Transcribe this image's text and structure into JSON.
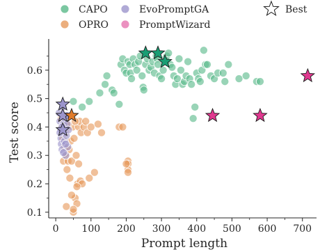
{
  "chart_data": {
    "type": "scatter",
    "xlabel": "Prompt length",
    "ylabel": "Test score",
    "xlim": [
      -20,
      740
    ],
    "ylim": [
      0.08,
      0.7
    ],
    "xticks": [
      0,
      100,
      200,
      300,
      400,
      500,
      600,
      700
    ],
    "yticks": [
      0.1,
      0.2,
      0.3,
      0.4,
      0.5,
      0.6
    ],
    "grid": false,
    "legend": {
      "placement": "top",
      "entries": [
        {
          "label": "CAPO",
          "marker": "circle",
          "color": "#5ab98a"
        },
        {
          "label": "OPRO",
          "marker": "circle",
          "color": "#e69a5c"
        },
        {
          "label": "EvoPromptGA",
          "marker": "circle",
          "color": "#9c95cc"
        },
        {
          "label": "PromptWizard",
          "marker": "circle",
          "color": "#e676b0"
        },
        {
          "label": "Best",
          "marker": "star",
          "color": "#ffffff"
        }
      ]
    },
    "series": [
      {
        "name": "CAPO",
        "color": "#5ab98a",
        "points": [
          [
            50,
            0.49
          ],
          [
            75,
            0.47
          ],
          [
            95,
            0.49
          ],
          [
            125,
            0.52
          ],
          [
            140,
            0.55
          ],
          [
            145,
            0.58
          ],
          [
            160,
            0.53
          ],
          [
            165,
            0.52
          ],
          [
            180,
            0.48
          ],
          [
            185,
            0.62
          ],
          [
            190,
            0.64
          ],
          [
            195,
            0.6
          ],
          [
            200,
            0.59
          ],
          [
            205,
            0.63
          ],
          [
            210,
            0.62
          ],
          [
            212,
            0.59
          ],
          [
            215,
            0.57
          ],
          [
            220,
            0.64
          ],
          [
            225,
            0.62
          ],
          [
            230,
            0.6
          ],
          [
            235,
            0.63
          ],
          [
            240,
            0.65
          ],
          [
            245,
            0.58
          ],
          [
            248,
            0.54
          ],
          [
            250,
            0.53
          ],
          [
            255,
            0.62
          ],
          [
            260,
            0.64
          ],
          [
            265,
            0.6
          ],
          [
            270,
            0.61
          ],
          [
            275,
            0.63
          ],
          [
            280,
            0.59
          ],
          [
            285,
            0.65
          ],
          [
            288,
            0.64
          ],
          [
            290,
            0.62
          ],
          [
            295,
            0.58
          ],
          [
            300,
            0.57
          ],
          [
            305,
            0.6
          ],
          [
            310,
            0.64
          ],
          [
            315,
            0.65
          ],
          [
            320,
            0.66
          ],
          [
            325,
            0.62
          ],
          [
            330,
            0.61
          ],
          [
            335,
            0.58
          ],
          [
            340,
            0.55
          ],
          [
            345,
            0.57
          ],
          [
            350,
            0.64
          ],
          [
            355,
            0.6
          ],
          [
            360,
            0.55
          ],
          [
            365,
            0.56
          ],
          [
            370,
            0.58
          ],
          [
            375,
            0.63
          ],
          [
            380,
            0.57
          ],
          [
            385,
            0.55
          ],
          [
            390,
            0.43
          ],
          [
            395,
            0.47
          ],
          [
            400,
            0.59
          ],
          [
            405,
            0.57
          ],
          [
            410,
            0.56
          ],
          [
            415,
            0.6
          ],
          [
            420,
            0.67
          ],
          [
            425,
            0.62
          ],
          [
            430,
            0.62
          ],
          [
            440,
            0.58
          ],
          [
            450,
            0.57
          ],
          [
            460,
            0.59
          ],
          [
            475,
            0.59
          ],
          [
            480,
            0.56
          ],
          [
            490,
            0.62
          ],
          [
            520,
            0.57
          ],
          [
            540,
            0.58
          ],
          [
            570,
            0.56
          ],
          [
            580,
            0.56
          ]
        ]
      },
      {
        "name": "OPRO",
        "color": "#e69a5c",
        "points": [
          [
            15,
            0.43
          ],
          [
            18,
            0.4
          ],
          [
            20,
            0.36
          ],
          [
            22,
            0.28
          ],
          [
            25,
            0.33
          ],
          [
            28,
            0.38
          ],
          [
            30,
            0.3
          ],
          [
            32,
            0.25
          ],
          [
            35,
            0.28
          ],
          [
            38,
            0.32
          ],
          [
            40,
            0.22
          ],
          [
            42,
            0.35
          ],
          [
            45,
            0.28
          ],
          [
            48,
            0.4
          ],
          [
            50,
            0.1
          ],
          [
            52,
            0.36
          ],
          [
            55,
            0.15
          ],
          [
            58,
            0.3
          ],
          [
            60,
            0.13
          ],
          [
            62,
            0.2
          ],
          [
            65,
            0.4
          ],
          [
            68,
            0.42
          ],
          [
            70,
            0.21
          ],
          [
            72,
            0.38
          ],
          [
            75,
            0.2
          ],
          [
            80,
            0.4
          ],
          [
            85,
            0.42
          ],
          [
            90,
            0.38
          ],
          [
            100,
            0.4
          ],
          [
            120,
            0.41
          ],
          [
            130,
            0.38
          ],
          [
            180,
            0.4
          ],
          [
            190,
            0.4
          ],
          [
            50,
            0.11
          ],
          [
            60,
            0.19
          ],
          [
            35,
            0.41
          ],
          [
            40,
            0.44
          ],
          [
            55,
            0.42
          ],
          [
            110,
            0.24
          ],
          [
            205,
            0.28
          ],
          [
            205,
            0.27
          ],
          [
            205,
            0.25
          ],
          [
            205,
            0.24
          ],
          [
            200,
            0.27
          ],
          [
            30,
            0.12
          ],
          [
            45,
            0.16
          ],
          [
            95,
            0.22
          ],
          [
            65,
            0.27
          ]
        ]
      },
      {
        "name": "EvoPromptGA",
        "color": "#9c95cc",
        "points": [
          [
            10,
            0.45
          ],
          [
            12,
            0.42
          ],
          [
            14,
            0.39
          ],
          [
            15,
            0.36
          ],
          [
            16,
            0.34
          ],
          [
            18,
            0.32
          ],
          [
            20,
            0.47
          ],
          [
            22,
            0.41
          ],
          [
            24,
            0.38
          ],
          [
            25,
            0.35
          ],
          [
            26,
            0.43
          ],
          [
            28,
            0.3
          ],
          [
            30,
            0.37
          ],
          [
            32,
            0.41
          ],
          [
            34,
            0.33
          ],
          [
            35,
            0.44
          ],
          [
            22,
            0.31
          ],
          [
            18,
            0.4
          ],
          [
            28,
            0.34
          ],
          [
            12,
            0.38
          ],
          [
            30,
            0.44
          ],
          [
            36,
            0.39
          ]
        ]
      },
      {
        "name": "PromptWizard",
        "color": "#e676b0",
        "points": []
      }
    ],
    "best": [
      {
        "x": 20,
        "y": 0.48,
        "color": "#9c95cc"
      },
      {
        "x": 20,
        "y": 0.44,
        "color": "#9c95cc"
      },
      {
        "x": 20,
        "y": 0.39,
        "color": "#9c95cc"
      },
      {
        "x": 45,
        "y": 0.44,
        "color": "#e07b2a"
      },
      {
        "x": 255,
        "y": 0.66,
        "color": "#1a9e74"
      },
      {
        "x": 290,
        "y": 0.66,
        "color": "#1a9e74"
      },
      {
        "x": 310,
        "y": 0.63,
        "color": "#1a9e74"
      },
      {
        "x": 445,
        "y": 0.44,
        "color": "#e0388f"
      },
      {
        "x": 580,
        "y": 0.44,
        "color": "#e0388f"
      },
      {
        "x": 715,
        "y": 0.58,
        "color": "#e0388f"
      }
    ]
  }
}
